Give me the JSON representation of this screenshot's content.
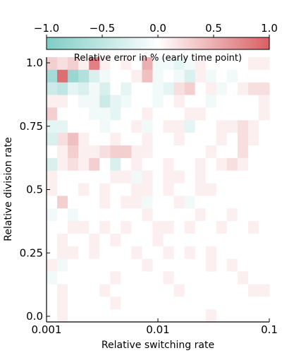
{
  "chart_data": {
    "type": "heatmap",
    "title": "Relative error in % (early time point)",
    "xlabel": "Relative switching rate",
    "ylabel": "Relative division rate",
    "x_scale": "log",
    "xlim": [
      0.001,
      0.1
    ],
    "x_ticks": [
      "0.001",
      "0.01",
      "0.1"
    ],
    "ylim": [
      0.0,
      1.0
    ],
    "y_ticks": [
      "0.0",
      "0.25",
      "0.5",
      "0.75",
      "1.0"
    ],
    "colorbar": {
      "range": [
        -1.0,
        1.0
      ],
      "ticks": [
        "−1.0",
        "−0.5",
        "0.0",
        "0.5",
        "1.0"
      ],
      "low_color": "#7fcdc6",
      "mid_color": "#ffffff",
      "high_color": "#d95f63",
      "placement": "top"
    },
    "grid": false,
    "rows_top_to_bottom": 21,
    "cols_left_to_right": 21,
    "values": [
      [
        0.3,
        0.2,
        0.3,
        0.1,
        0.8,
        0.1,
        0.0,
        0.1,
        0.0,
        0.5,
        -0.1,
        -0.1,
        -0.2,
        -0.1,
        0.1,
        0.0,
        0.0,
        0.0,
        0.0,
        0.1,
        0.1
      ],
      [
        -0.7,
        0.9,
        -0.8,
        -0.6,
        -0.3,
        -0.1,
        0.0,
        0.0,
        0.1,
        0.4,
        -0.1,
        0.0,
        -0.1,
        -0.3,
        0.1,
        -0.1,
        0.0,
        -0.1,
        0.0,
        0.0,
        0.0
      ],
      [
        -0.4,
        -0.5,
        -0.2,
        -0.3,
        -0.1,
        -0.3,
        0.0,
        -0.2,
        0.0,
        0.0,
        -0.1,
        -0.2,
        0.2,
        0.3,
        0.0,
        0.1,
        -0.1,
        0.0,
        0.1,
        0.2,
        0.2
      ],
      [
        0.1,
        0.1,
        0.0,
        -0.1,
        -0.1,
        -0.4,
        -0.2,
        -0.1,
        0.0,
        0.0,
        -0.1,
        0.0,
        0.1,
        0.0,
        0.0,
        -0.1,
        0.0,
        0.0,
        0.0,
        0.0,
        0.1
      ],
      [
        0.3,
        0.0,
        0.0,
        0.0,
        -0.1,
        -0.1,
        -0.2,
        0.0,
        0.0,
        0.1,
        0.0,
        0.0,
        0.0,
        0.1,
        0.1,
        0.0,
        0.0,
        0.0,
        0.0,
        0.0,
        0.1
      ],
      [
        -0.2,
        -0.2,
        0.0,
        0.0,
        0.0,
        -0.1,
        0.0,
        0.0,
        0.1,
        -0.1,
        0.0,
        0.1,
        0.1,
        -0.2,
        0.0,
        0.0,
        0.1,
        0.1,
        0.2,
        0.1,
        0.0
      ],
      [
        -0.3,
        0.2,
        0.4,
        0.1,
        0.0,
        0.0,
        0.1,
        0.0,
        0.0,
        0.1,
        0.0,
        0.0,
        0.1,
        0.0,
        0.0,
        0.0,
        0.1,
        0.0,
        0.2,
        0.1,
        0.0
      ],
      [
        0.0,
        0.1,
        0.3,
        0.1,
        0.1,
        0.2,
        0.3,
        0.3,
        0.1,
        0.1,
        0.0,
        0.0,
        0.0,
        0.0,
        0.0,
        0.1,
        0.0,
        0.0,
        0.2,
        0.0,
        0.0
      ],
      [
        -0.3,
        0.1,
        0.2,
        0.1,
        0.3,
        0.0,
        -0.3,
        0.0,
        0.1,
        0.0,
        0.0,
        0.1,
        0.0,
        0.0,
        0.1,
        0.0,
        0.1,
        0.2,
        0.1,
        0.0,
        0.0
      ],
      [
        0.1,
        0.0,
        0.0,
        0.0,
        0.0,
        0.0,
        0.1,
        0.1,
        -0.1,
        0.1,
        0.0,
        0.1,
        0.1,
        0.0,
        0.1,
        0.0,
        0.0,
        0.0,
        0.0,
        0.0,
        0.0
      ],
      [
        0.1,
        0.0,
        0.0,
        0.1,
        0.0,
        0.1,
        0.0,
        0.0,
        0.1,
        0.1,
        0.0,
        0.1,
        0.0,
        0.0,
        0.1,
        0.1,
        0.0,
        0.0,
        0.0,
        0.0,
        0.0
      ],
      [
        0.0,
        0.3,
        0.0,
        0.0,
        0.0,
        0.1,
        0.0,
        0.1,
        0.1,
        -0.1,
        0.0,
        0.0,
        0.1,
        -0.1,
        0.0,
        0.0,
        0.0,
        0.0,
        0.0,
        0.0,
        0.0
      ],
      [
        -0.1,
        0.0,
        -0.1,
        0.0,
        0.0,
        0.0,
        0.0,
        0.0,
        0.0,
        0.1,
        0.0,
        0.0,
        0.0,
        0.0,
        0.1,
        0.0,
        0.0,
        0.1,
        0.0,
        0.0,
        0.0
      ],
      [
        0.0,
        0.0,
        0.1,
        0.1,
        0.0,
        0.1,
        0.0,
        0.1,
        0.0,
        0.0,
        0.1,
        0.1,
        0.0,
        0.1,
        0.0,
        0.0,
        0.1,
        0.0,
        0.0,
        0.1,
        0.0
      ],
      [
        0.0,
        0.1,
        0.0,
        0.0,
        0.1,
        0.0,
        0.1,
        0.0,
        0.0,
        0.0,
        0.1,
        0.0,
        0.0,
        0.0,
        0.0,
        0.0,
        0.0,
        0.0,
        0.0,
        0.0,
        0.0
      ],
      [
        0.0,
        0.1,
        0.1,
        0.0,
        0.1,
        0.0,
        0.0,
        0.0,
        0.1,
        0.0,
        0.0,
        0.1,
        0.0,
        0.1,
        0.0,
        0.1,
        0.0,
        0.0,
        0.0,
        0.0,
        0.0
      ],
      [
        0.1,
        -0.1,
        0.0,
        0.0,
        0.0,
        0.0,
        0.0,
        0.0,
        0.0,
        0.1,
        0.0,
        0.0,
        0.0,
        0.0,
        0.0,
        0.1,
        0.0,
        0.1,
        0.0,
        0.0,
        0.0
      ],
      [
        -0.1,
        0.0,
        0.0,
        0.0,
        0.0,
        0.0,
        0.1,
        0.0,
        0.0,
        0.0,
        0.0,
        0.1,
        0.0,
        0.0,
        0.0,
        0.0,
        0.0,
        0.0,
        0.1,
        0.0,
        0.0
      ],
      [
        0.0,
        0.1,
        0.0,
        0.0,
        0.0,
        0.1,
        0.0,
        0.0,
        0.0,
        0.0,
        0.0,
        0.0,
        0.1,
        0.0,
        0.0,
        0.0,
        0.0,
        0.0,
        0.0,
        0.1,
        0.1
      ],
      [
        0.0,
        0.1,
        0.0,
        0.0,
        0.0,
        0.0,
        0.1,
        0.0,
        0.0,
        0.0,
        0.0,
        0.0,
        0.0,
        0.0,
        0.0,
        0.0,
        0.0,
        0.0,
        0.0,
        0.0,
        0.0
      ],
      [
        0.0,
        0.1,
        0.0,
        0.0,
        0.0,
        0.0,
        0.0,
        0.0,
        0.0,
        0.0,
        0.0,
        0.0,
        0.0,
        0.0,
        0.0,
        0.1,
        0.0,
        0.0,
        0.0,
        0.0,
        0.0
      ]
    ]
  }
}
